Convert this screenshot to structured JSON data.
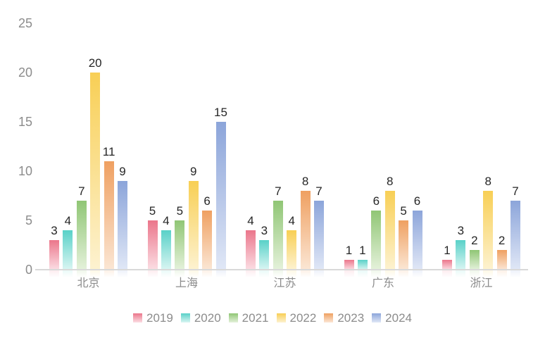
{
  "chart_data": {
    "type": "bar",
    "title": "",
    "xlabel": "",
    "ylabel": "",
    "categories": [
      "北京",
      "上海",
      "江苏",
      "广东",
      "浙江"
    ],
    "series": [
      {
        "name": "2019",
        "color_top": "#eb768b",
        "color_bottom": "#fbdde3",
        "values": [
          3,
          5,
          4,
          1,
          1
        ]
      },
      {
        "name": "2020",
        "color_top": "#59d1c8",
        "color_bottom": "#d9f5f2",
        "values": [
          4,
          4,
          3,
          1,
          3
        ]
      },
      {
        "name": "2021",
        "color_top": "#90c675",
        "color_bottom": "#e4f1da",
        "values": [
          7,
          5,
          7,
          6,
          2
        ]
      },
      {
        "name": "2022",
        "color_top": "#f8cf55",
        "color_bottom": "#fdf2d0",
        "values": [
          20,
          9,
          4,
          8,
          8
        ]
      },
      {
        "name": "2023",
        "color_top": "#efa061",
        "color_bottom": "#fbe6d4",
        "values": [
          11,
          6,
          8,
          5,
          2
        ]
      },
      {
        "name": "2024",
        "color_top": "#8ca5da",
        "color_bottom": "#e0e7f6",
        "values": [
          9,
          15,
          7,
          6,
          7
        ]
      }
    ],
    "ylim": [
      0,
      25
    ],
    "yticks": [
      0,
      5,
      10,
      15,
      20,
      25
    ],
    "grid": false,
    "legend_position": "bottom",
    "axis_color": "#d9d9d9",
    "tick_label_color": "#8c8c8c",
    "value_label_color": "#262626"
  }
}
